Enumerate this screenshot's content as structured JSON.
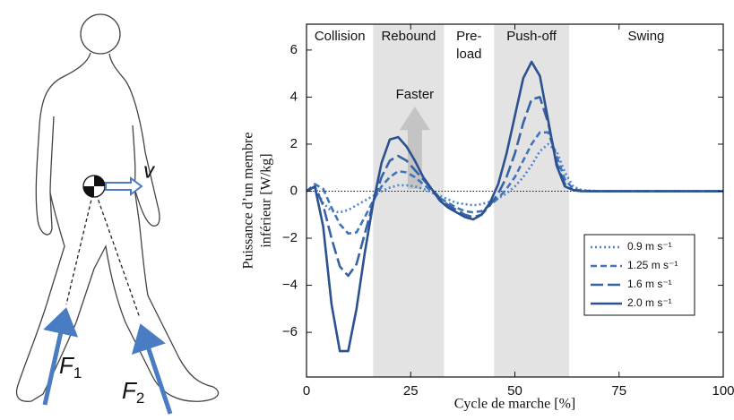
{
  "illustration": {
    "velocity_label": "v",
    "forces": [
      {
        "symbol": "F",
        "subscript": "1"
      },
      {
        "symbol": "F",
        "subscript": "2"
      }
    ]
  },
  "chart_data": {
    "type": "line",
    "xlabel": "Cycle de marche [%]",
    "ylabel": [
      "Puissance d’un membre",
      "inférieur [W/kg]"
    ],
    "annotation": "Faster",
    "xlim": [
      0,
      100
    ],
    "xticks": [
      0,
      25,
      50,
      75,
      100
    ],
    "ylim": [
      -7.9,
      7.1
    ],
    "yticks": [
      {
        "value": -6,
        "label": "−6"
      },
      {
        "value": -4,
        "label": "−4"
      },
      {
        "value": -2,
        "label": "−2"
      },
      0,
      2,
      4,
      6
    ],
    "legend": "lower right",
    "phases": [
      {
        "label": [
          "Collision"
        ],
        "start": 0,
        "end": 16,
        "shaded": false
      },
      {
        "label": [
          "Rebound"
        ],
        "start": 16,
        "end": 33,
        "shaded": true
      },
      {
        "label": [
          "Pre-",
          "load"
        ],
        "start": 33,
        "end": 45,
        "shaded": false
      },
      {
        "label": [
          "Push-off"
        ],
        "start": 45,
        "end": 63,
        "shaded": true
      },
      {
        "label": [
          "Swing"
        ],
        "start": 63,
        "end": 100,
        "shaded": false
      }
    ],
    "x": [
      0,
      2,
      4,
      6,
      8,
      10,
      12,
      14,
      16,
      18,
      20,
      22,
      24,
      26,
      28,
      30,
      32,
      34,
      36,
      38,
      40,
      42,
      44,
      46,
      48,
      50,
      52,
      54,
      56,
      58,
      60,
      62,
      64,
      66,
      70,
      80,
      90,
      100
    ],
    "series": [
      {
        "name": "0.9 m s⁻¹",
        "color": "#4f85cf",
        "linestyle": "dotted",
        "values": [
          0,
          0.2,
          -0.5,
          -0.85,
          -0.9,
          -0.8,
          -0.6,
          -0.4,
          -0.2,
          0,
          0.15,
          0.25,
          0.25,
          0.2,
          0.1,
          -0.05,
          -0.2,
          -0.35,
          -0.5,
          -0.55,
          -0.6,
          -0.55,
          -0.45,
          -0.3,
          -0.1,
          0.2,
          0.6,
          1.1,
          1.7,
          2,
          1.7,
          0.8,
          0.2,
          0.05,
          0,
          0,
          0,
          0
        ]
      },
      {
        "name": "1.25 m s⁻¹",
        "color": "#4173bd",
        "linestyle": "dashed",
        "values": [
          0,
          0.3,
          0.1,
          -0.7,
          -1.4,
          -1.8,
          -1.75,
          -1.1,
          -0.4,
          0.2,
          0.6,
          0.85,
          0.8,
          0.6,
          0.3,
          0,
          -0.3,
          -0.5,
          -0.7,
          -0.85,
          -0.9,
          -0.85,
          -0.6,
          -0.3,
          0.1,
          0.6,
          1.3,
          2,
          2.5,
          2.5,
          1.5,
          0.5,
          0.1,
          0.02,
          0,
          0,
          0,
          0
        ]
      },
      {
        "name": "1.6 m s⁻¹",
        "color": "#3663a6",
        "linestyle": "longdash",
        "values": [
          0,
          0.2,
          -0.6,
          -2,
          -3.2,
          -3.6,
          -3.1,
          -1.8,
          -0.5,
          0.6,
          1.3,
          1.5,
          1.3,
          0.9,
          0.5,
          0.1,
          -0.3,
          -0.6,
          -0.8,
          -1,
          -1.1,
          -1,
          -0.6,
          -0.1,
          0.6,
          1.6,
          2.9,
          3.9,
          4,
          2.9,
          1.2,
          0.3,
          0.05,
          0,
          0,
          0,
          0,
          0
        ]
      },
      {
        "name": "2.0 m s⁻¹",
        "color": "#2c5190",
        "linestyle": "solid",
        "values": [
          0,
          0.2,
          -1.5,
          -4.8,
          -6.8,
          -6.8,
          -5,
          -2.6,
          -0.5,
          1.2,
          2.2,
          2.3,
          1.9,
          1.3,
          0.6,
          0.1,
          -0.4,
          -0.7,
          -0.9,
          -1.1,
          -1.2,
          -1,
          -0.5,
          0.3,
          1.6,
          3.2,
          4.8,
          5.5,
          4.9,
          3,
          1.1,
          0.2,
          0.05,
          0,
          0,
          0,
          0,
          0
        ]
      }
    ]
  }
}
